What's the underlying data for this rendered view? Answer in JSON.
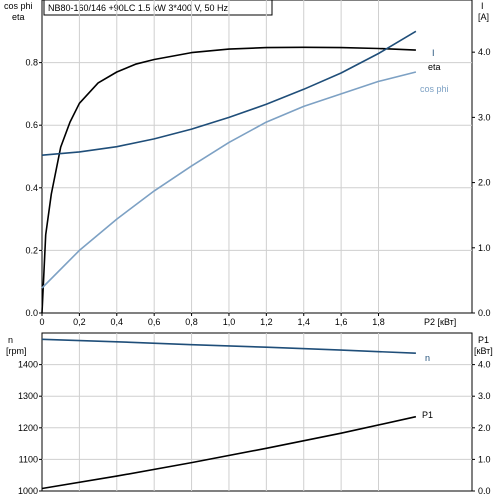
{
  "title": "NB80-160/146 +90LC  1.5 kW  3*400 V, 50 Hz",
  "colors": {
    "eta": "#000000",
    "I": "#1f4e79",
    "cos_phi": "#7da1c4",
    "n": "#1f4e79",
    "P1": "#000000",
    "grid": "#cfcfcf"
  },
  "chart_data": [
    {
      "type": "line",
      "xlabel": "P2 [кВт]",
      "left_axis_labels": [
        "cos phi",
        "eta"
      ],
      "right_axis_labels": [
        "I",
        "[A]"
      ],
      "xlim": [
        0,
        2.3
      ],
      "x_ticks": [
        "0",
        "0,2",
        "0,4",
        "0,6",
        "0,8",
        "1,0",
        "1,2",
        "1,4",
        "1,6",
        "1,8"
      ],
      "x_tick_values": [
        0,
        0.2,
        0.4,
        0.6,
        0.8,
        1.0,
        1.2,
        1.4,
        1.6,
        1.8
      ],
      "ylim": [
        0,
        1.0
      ],
      "y_ticks": [
        "0.0",
        "0.2",
        "0.4",
        "0.6",
        "0.8"
      ],
      "y_tick_values": [
        0,
        0.2,
        0.4,
        0.6,
        0.8
      ],
      "y2lim": [
        0,
        4.8
      ],
      "y2_ticks": [
        "0.0",
        "1.0",
        "2.0",
        "3.0",
        "4.0"
      ],
      "y2_tick_values": [
        0,
        1,
        2,
        3,
        4
      ],
      "series": [
        {
          "name": "eta",
          "axis": "left",
          "x": [
            0,
            0.02,
            0.05,
            0.1,
            0.15,
            0.2,
            0.3,
            0.4,
            0.5,
            0.6,
            0.8,
            1.0,
            1.2,
            1.4,
            1.6,
            1.8,
            2.0
          ],
          "y": [
            0.0,
            0.25,
            0.38,
            0.53,
            0.61,
            0.67,
            0.735,
            0.77,
            0.795,
            0.81,
            0.832,
            0.843,
            0.848,
            0.849,
            0.848,
            0.845,
            0.84
          ]
        },
        {
          "name": "I",
          "axis": "right",
          "x": [
            0,
            0.2,
            0.4,
            0.6,
            0.8,
            1.0,
            1.2,
            1.4,
            1.6,
            1.8,
            2.0
          ],
          "y": [
            2.42,
            2.47,
            2.55,
            2.67,
            2.82,
            3.0,
            3.2,
            3.43,
            3.68,
            3.98,
            4.32
          ]
        },
        {
          "name": "cos phi",
          "axis": "left",
          "x": [
            0,
            0.2,
            0.4,
            0.6,
            0.8,
            1.0,
            1.2,
            1.4,
            1.6,
            1.8,
            2.0
          ],
          "y": [
            0.08,
            0.2,
            0.3,
            0.39,
            0.47,
            0.545,
            0.61,
            0.66,
            0.7,
            0.74,
            0.77
          ]
        }
      ],
      "legend_labels": [
        "I",
        "eta",
        "cos phi"
      ]
    },
    {
      "type": "line",
      "left_axis_labels": [
        "n",
        "[rpm]"
      ],
      "right_axis_labels": [
        "P1",
        "[кВт]"
      ],
      "xlim": [
        0,
        2.3
      ],
      "ylim": [
        1000,
        1500
      ],
      "y_ticks": [
        "1000",
        "1100",
        "1200",
        "1300",
        "1400"
      ],
      "y_tick_values": [
        1000,
        1100,
        1200,
        1300,
        1400
      ],
      "y2lim": [
        0,
        5
      ],
      "y2_ticks": [
        "0.0",
        "1.0",
        "2.0",
        "3.0",
        "4.0"
      ],
      "y2_tick_values": [
        0,
        1,
        2,
        3,
        4
      ],
      "series": [
        {
          "name": "n",
          "axis": "left",
          "x": [
            0,
            0.4,
            0.8,
            1.2,
            1.6,
            2.0
          ],
          "y": [
            1480,
            1472,
            1463,
            1455,
            1446,
            1436
          ]
        },
        {
          "name": "P1",
          "axis": "right",
          "x": [
            0,
            0.4,
            0.8,
            1.2,
            1.6,
            2.0
          ],
          "y": [
            0.08,
            0.47,
            0.9,
            1.35,
            1.83,
            2.35
          ]
        }
      ],
      "legend_labels": [
        "n",
        "P1"
      ]
    }
  ]
}
